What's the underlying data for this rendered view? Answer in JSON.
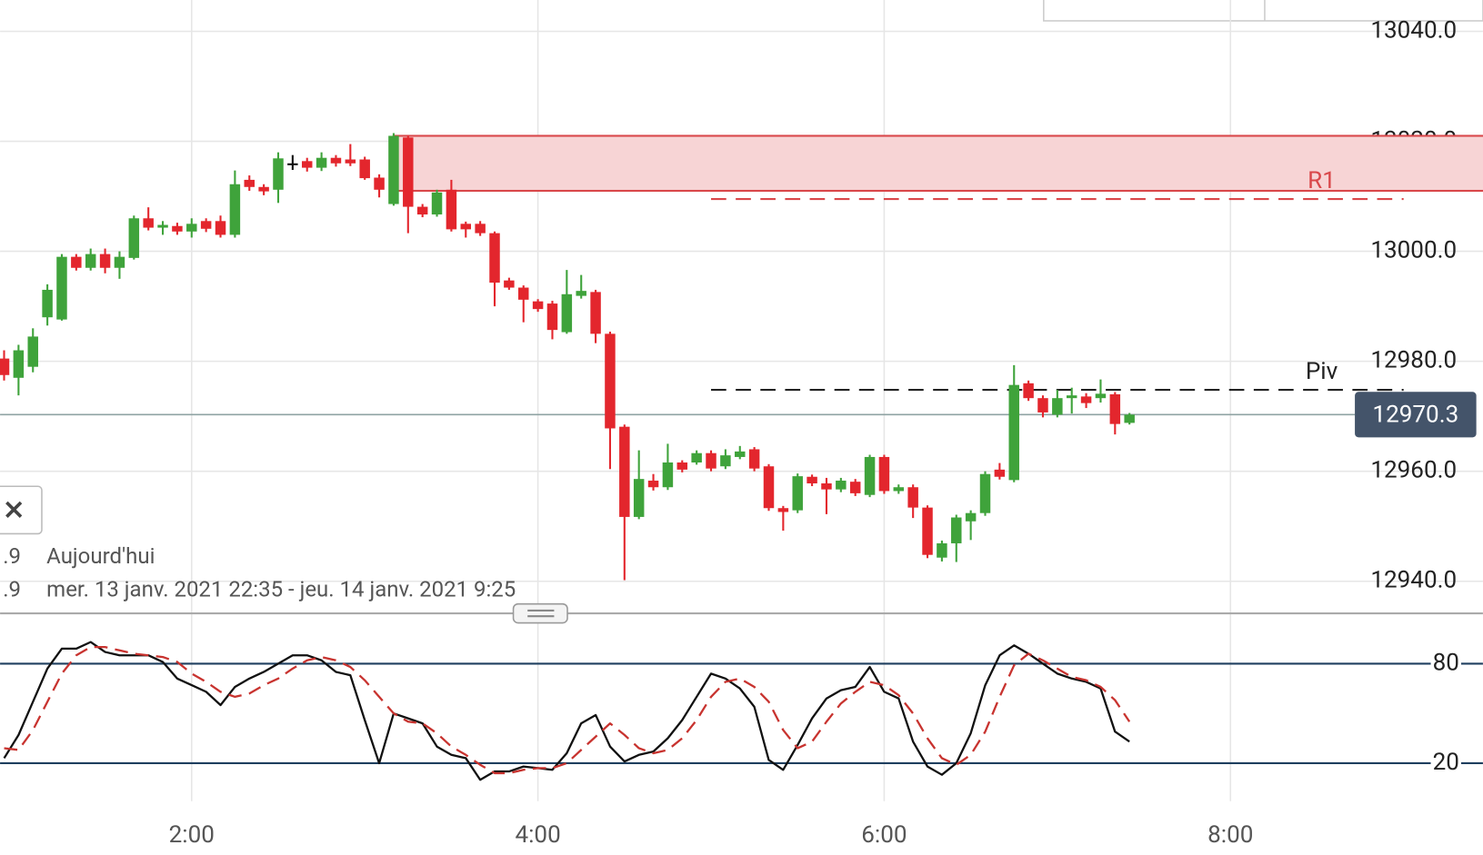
{
  "chart_data": [
    {
      "type": "candlestick",
      "x": [
        55,
        60,
        65,
        70,
        75,
        80,
        85,
        90,
        95,
        100,
        105,
        110,
        115,
        120,
        125,
        130,
        135,
        140,
        145,
        150,
        155,
        160,
        165,
        170,
        175,
        180,
        185,
        190,
        195,
        200,
        205,
        210,
        215,
        220,
        225,
        230,
        235,
        240,
        245,
        250,
        255,
        260,
        265,
        270,
        275,
        280,
        285,
        290,
        295,
        300,
        305,
        310,
        315,
        320,
        325,
        330,
        335,
        340,
        345,
        350,
        355,
        360,
        365,
        370,
        375,
        380,
        385,
        390,
        395,
        400,
        405,
        410,
        415,
        420,
        425,
        430,
        435,
        440,
        445
      ],
      "open": [
        12980.5,
        12977.0,
        12979.0,
        12988.0,
        12987.6,
        12999.0,
        12997.0,
        12999.5,
        12997.0,
        12998.8,
        13006.0,
        13004.3,
        13004.6,
        13003.6,
        13005.5,
        13005.5,
        13003.0,
        13013.0,
        13011.7,
        13011.2,
        13016.0,
        13016.4,
        13015.2,
        13017.0,
        13016.7,
        13016.7,
        13013.4,
        13008.6,
        13020.7,
        13008.1,
        13006.7,
        13011.2,
        13005.0,
        13005.0,
        13003.3,
        12994.7,
        12993.4,
        12990.9,
        12990.5,
        12985.3,
        12991.9,
        12992.6,
        12985.0,
        12968.1,
        12951.7,
        12958.3,
        12957.1,
        12961.6,
        12961.6,
        12963.3,
        12960.9,
        12962.6,
        12964.0,
        12960.9,
        12953.3,
        12952.9,
        12959.0,
        12957.8,
        12956.7,
        12958.1,
        12955.7,
        12962.6,
        12956.4,
        12957.1,
        12953.4,
        12944.3,
        12946.9,
        12950.9,
        12952.4,
        12960.3,
        12958.4,
        12976.0,
        12973.3,
        12970.3,
        12973.3,
        12973.6,
        12973.3,
        12974.0,
        12968.8
      ],
      "high": [
        12982,
        12983,
        12986,
        12994,
        12999.5,
        12999.5,
        13000.5,
        13000.5,
        13000,
        13006.5,
        13008,
        13005.5,
        13005.2,
        13006,
        13006,
        13006.5,
        13014.7,
        13013.8,
        13012.2,
        13018,
        13017.5,
        13017,
        13018,
        13017.5,
        13019.5,
        13017.2,
        13014,
        13021.5,
        13021,
        13008.6,
        13011.2,
        13013,
        13005.4,
        13005.5,
        13003.6,
        12995.2,
        12993.8,
        12991.3,
        12991,
        12996.6,
        12995.7,
        12993,
        12985.4,
        12968.5,
        12963.8,
        12959.5,
        12965.0,
        12962,
        12963.8,
        12963.8,
        12964,
        12964.6,
        12964.4,
        12961.3,
        12953.7,
        12959.6,
        12959.4,
        12958.8,
        12958.8,
        12958.6,
        12963,
        12963,
        12957.6,
        12957.6,
        12953.8,
        12947.4,
        12952.1,
        12952.9,
        12960,
        12961.5,
        12979.3,
        12976.5,
        12973.8,
        12974.8,
        12975.2,
        12974.2,
        12976.7,
        12974.4,
        12970.6
      ],
      "low": [
        12976.5,
        12973.8,
        12978,
        12986.5,
        12987.4,
        12996.5,
        12996.5,
        12996,
        12995,
        12998.5,
        13003.8,
        13003,
        13003,
        13002.5,
        13003.5,
        13002.5,
        13002.5,
        13011,
        13010.2,
        13008.8,
        13014.8,
        13014.5,
        13014.6,
        13015.4,
        13015.5,
        13013,
        13009.8,
        13008.3,
        13003.3,
        13006.2,
        13006.3,
        13003.6,
        13002.5,
        13002.8,
        12990.0,
        12993,
        12987.1,
        12989,
        12984,
        12985,
        12991.4,
        12983.3,
        12960.4,
        12940.2,
        12951.3,
        12956.5,
        12956.6,
        12959.8,
        12961.2,
        12960,
        12960.4,
        12962.2,
        12960,
        12952.8,
        12949.2,
        12952.4,
        12957.3,
        12952.2,
        12956.2,
        12955.5,
        12955.3,
        12955.9,
        12955.9,
        12951.5,
        12944.2,
        12943.6,
        12943.5,
        12947.5,
        12951.9,
        12958.5,
        12958,
        12972.8,
        12969.8,
        12969.8,
        12970.5,
        12971.5,
        12972.5,
        12966.7,
        12968.5
      ],
      "close": [
        12977.5,
        12982.0,
        12984.5,
        12993.0,
        12999.0,
        12997.0,
        12999.5,
        12997.0,
        12999.0,
        13006.0,
        13004.3,
        13004.8,
        13003.6,
        13005.0,
        13004.1,
        13003.0,
        13012.2,
        13011.7,
        13010.9,
        13016.9,
        13016.0,
        13015.2,
        13017.0,
        13016.0,
        13016.0,
        13013.3,
        13011.2,
        13021.0,
        13008.1,
        13006.7,
        13010.7,
        13004.0,
        13004.0,
        13003.3,
        12994.3,
        12993.4,
        12991.2,
        12989.5,
        12985.7,
        12992.2,
        12992.8,
        12985.0,
        12967.8,
        12951.7,
        12958.6,
        12957.1,
        12961.6,
        12960.3,
        12963.3,
        12960.5,
        12962.9,
        12963.6,
        12960.5,
        12953.3,
        12952.6,
        12959.1,
        12957.8,
        12956.7,
        12958.3,
        12956.0,
        12962.6,
        12956.4,
        12957.1,
        12953.4,
        12944.8,
        12946.9,
        12951.6,
        12952.4,
        12959.5,
        12959.0,
        12975.7,
        12973.3,
        12970.7,
        12973.3,
        12973.8,
        12972.4,
        12974.1,
        12968.6,
        12970.3
      ],
      "up_color": "#3fa33b",
      "down_color": "#e3262d",
      "doji_color": "#111111",
      "xlim": [
        53.6,
        567.5
      ],
      "xticks": [
        {
          "value": 120,
          "label": "2:00"
        },
        {
          "value": 240,
          "label": "4:00"
        },
        {
          "value": 360,
          "label": "6:00"
        },
        {
          "value": 480,
          "label": "8:00"
        }
      ],
      "ylim": [
        12934.5,
        13045.7
      ],
      "yticks": [
        {
          "value": 12940,
          "label": "12940.0"
        },
        {
          "value": 12960,
          "label": "12960.0"
        },
        {
          "value": 12980,
          "label": "12980.0"
        },
        {
          "value": 13000,
          "label": "13000.0"
        },
        {
          "value": 13020,
          "label": "13020.0"
        },
        {
          "value": 13040,
          "label": "13040.0"
        }
      ],
      "grid": true,
      "zone": {
        "low": 13011,
        "high": 13021,
        "start": 190,
        "color": "#f7d4d5",
        "edge_color": "#d9474a"
      },
      "levels": [
        {
          "label": "R1",
          "value": 13009.5,
          "start": 300,
          "end": 540,
          "color": "#d9474a"
        },
        {
          "label": "Piv",
          "value": 12974.8,
          "start": 300,
          "end": 540,
          "color": "#222222"
        }
      ],
      "last_price": 12970.3,
      "last_price_color": "#44546a"
    },
    {
      "type": "line",
      "x": [
        55,
        60,
        65,
        70,
        75,
        80,
        85,
        90,
        95,
        100,
        105,
        110,
        115,
        120,
        125,
        130,
        135,
        140,
        145,
        150,
        155,
        160,
        165,
        170,
        175,
        180,
        185,
        190,
        195,
        200,
        205,
        210,
        215,
        220,
        225,
        230,
        235,
        240,
        245,
        250,
        255,
        260,
        265,
        270,
        275,
        280,
        285,
        290,
        295,
        300,
        305,
        310,
        315,
        320,
        325,
        330,
        335,
        340,
        345,
        350,
        355,
        360,
        365,
        370,
        375,
        380,
        385,
        390,
        395,
        400,
        405,
        410,
        415,
        420,
        425,
        430,
        435,
        440,
        445
      ],
      "series": [
        {
          "color": "#111111",
          "style": "solid",
          "values": [
            23,
            37,
            57,
            77,
            89,
            89,
            93,
            87,
            85,
            85,
            85,
            81,
            71,
            67,
            63,
            55,
            66,
            71,
            75,
            80,
            85,
            85,
            82,
            75,
            73,
            46,
            20,
            50,
            47,
            44,
            30,
            25,
            23,
            10,
            15,
            15,
            18,
            17,
            16,
            26,
            44,
            49,
            30,
            21,
            25,
            27,
            35,
            46,
            60,
            74,
            71,
            65,
            54,
            22,
            16,
            31,
            47,
            59,
            64,
            66,
            78,
            63,
            59,
            33,
            18,
            13,
            20,
            38,
            67,
            85,
            91,
            86,
            80,
            74,
            71,
            69,
            65,
            39,
            33
          ]
        },
        {
          "color": "#c8332f",
          "style": "dashed",
          "values": [
            29,
            28,
            40,
            57,
            74,
            85,
            90,
            90,
            88,
            86,
            85,
            84,
            81,
            74,
            69,
            63,
            60,
            62,
            67,
            71,
            77,
            82,
            84,
            82,
            78,
            70,
            60,
            50,
            45,
            44,
            38,
            30,
            25,
            19,
            14,
            14,
            16,
            17,
            17,
            20,
            28,
            36,
            44,
            37,
            29,
            26,
            28,
            35,
            46,
            60,
            69,
            71,
            66,
            57,
            40,
            29,
            33,
            45,
            56,
            63,
            69,
            67,
            61,
            50,
            35,
            23,
            19,
            25,
            39,
            60,
            79,
            86,
            82,
            77,
            72,
            70,
            66,
            58,
            45
          ]
        }
      ],
      "ylim": [
        -2.86,
        100
      ],
      "yticks": [
        20,
        80
      ],
      "level_color": "#1f3f5f"
    }
  ],
  "info": {
    "prefix": [
      ".9",
      ".9"
    ],
    "rows": [
      "Aujourd'hui",
      "mer. 13 janv. 2021 22:35 - jeu. 14 janv. 2021 9:25"
    ]
  }
}
